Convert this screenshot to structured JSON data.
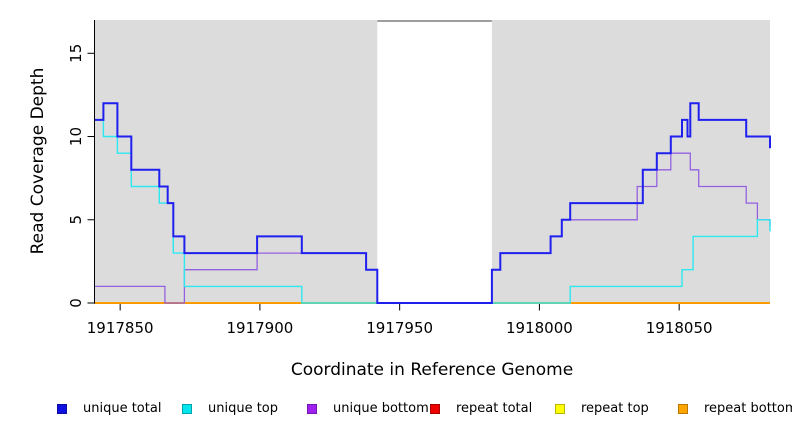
{
  "figure": {
    "background_color": "#ffffff",
    "plot_background_color": "#dcdcdc",
    "gap_band_color": "#ffffff",
    "gap_band_top_line_color": "#9e9e9e",
    "axis_color": "#000000"
  },
  "chart_data": {
    "type": "line",
    "line_style": "step",
    "title": "",
    "xlabel": "Coordinate in Reference Genome",
    "ylabel": "Read Coverage Depth",
    "xlim": [
      1917841,
      1918082.5
    ],
    "ylim": [
      0,
      17
    ],
    "x_ticks": [
      1917850,
      1917900,
      1917950,
      1918000,
      1918050
    ],
    "y_ticks": [
      0,
      5,
      10,
      15
    ],
    "grid": false,
    "legend_position": "bottom",
    "gap_region": {
      "x_start": 1917942,
      "x_end": 1917983
    },
    "series": [
      {
        "name": "repeat total",
        "color": "#e60000",
        "width": 1.4,
        "points": [
          [
            1917841,
            0
          ]
        ],
        "x_end": 1918082.5
      },
      {
        "name": "repeat top",
        "color": "#ffff00",
        "width": 1.4,
        "points": [
          [
            1917841,
            0
          ]
        ],
        "x_end": 1918082.5
      },
      {
        "name": "repeat bottom",
        "color": "#ff9c00",
        "width": 1.7,
        "points": [
          [
            1917841,
            0
          ]
        ],
        "x_end": 1918082.5
      },
      {
        "name": "unique bottom",
        "color": "#9460e0",
        "width": 1.3,
        "points": [
          [
            1917841,
            1
          ],
          [
            1917866,
            0
          ],
          [
            1917873,
            2
          ],
          [
            1917899,
            3
          ],
          [
            1917938,
            2
          ],
          [
            1917942,
            0
          ],
          [
            1917983,
            2
          ],
          [
            1917986,
            3
          ],
          [
            1918004,
            4
          ],
          [
            1918008,
            5
          ],
          [
            1918035,
            7
          ],
          [
            1918042,
            8
          ],
          [
            1918047,
            9
          ],
          [
            1918054,
            8
          ],
          [
            1918057,
            7
          ],
          [
            1918074,
            6
          ],
          [
            1918078,
            5
          ]
        ],
        "x_end": 1918082.5,
        "end_drop": 4.6
      },
      {
        "name": "unique top",
        "color": "#2ee8f0",
        "width": 1.4,
        "points": [
          [
            1917841,
            11
          ],
          [
            1917844,
            10
          ],
          [
            1917849,
            9
          ],
          [
            1917854,
            7
          ],
          [
            1917864,
            6
          ],
          [
            1917869,
            3
          ],
          [
            1917873,
            1
          ],
          [
            1917915,
            0
          ],
          [
            1918011,
            1
          ],
          [
            1918051,
            2
          ],
          [
            1918055,
            4
          ],
          [
            1918078,
            5
          ]
        ],
        "x_end": 1918082.5,
        "end_drop": 4.3
      },
      {
        "name": "unique total",
        "color": "#1f1ff0",
        "width": 2,
        "points": [
          [
            1917841,
            11
          ],
          [
            1917844,
            12
          ],
          [
            1917849,
            10
          ],
          [
            1917854,
            8
          ],
          [
            1917864,
            7
          ],
          [
            1917867,
            6
          ],
          [
            1917869,
            4
          ],
          [
            1917873,
            3
          ],
          [
            1917899,
            4
          ],
          [
            1917915,
            3
          ],
          [
            1917938,
            2
          ],
          [
            1917942,
            0
          ],
          [
            1917983,
            2
          ],
          [
            1917986,
            3
          ],
          [
            1918004,
            4
          ],
          [
            1918008,
            5
          ],
          [
            1918011,
            6
          ],
          [
            1918037,
            8
          ],
          [
            1918042,
            9
          ],
          [
            1918047,
            10
          ],
          [
            1918051,
            11
          ],
          [
            1918053,
            10
          ],
          [
            1918054,
            12
          ],
          [
            1918057,
            11
          ],
          [
            1918074,
            10
          ]
        ],
        "x_end": 1918082.5,
        "end_drop": 9.3
      }
    ],
    "legend": [
      {
        "label": "unique total",
        "color": "#1010e0"
      },
      {
        "label": "unique top",
        "color": "#00e5ee"
      },
      {
        "label": "unique bottom",
        "color": "#a020f0"
      },
      {
        "label": "repeat total",
        "color": "#ee0000"
      },
      {
        "label": "repeat top",
        "color": "#ffff00"
      },
      {
        "label": "repeat bottom",
        "color": "#ffa500"
      }
    ]
  }
}
